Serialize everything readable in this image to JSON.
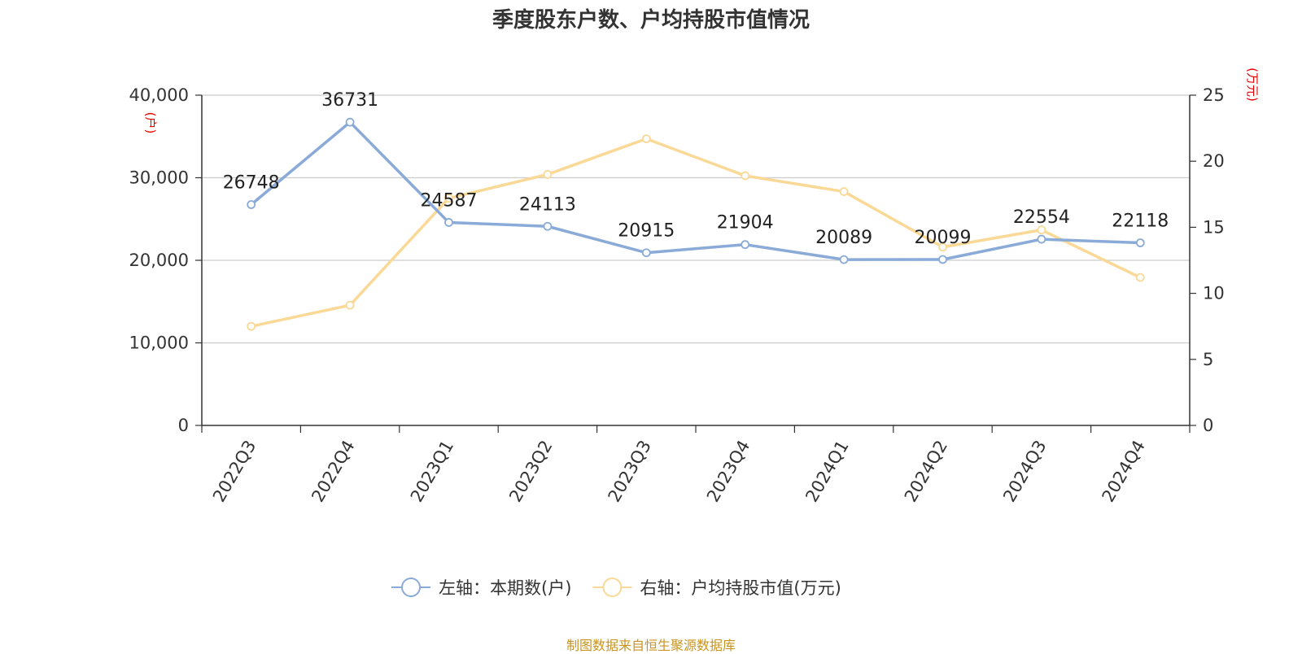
{
  "source": "制图数据来自恒生聚源数据库",
  "chart_data": {
    "type": "line",
    "title": "季度股东户数、户均持股市值情况",
    "categories": [
      "2022Q3",
      "2022Q4",
      "2023Q1",
      "2023Q2",
      "2023Q3",
      "2023Q4",
      "2024Q1",
      "2024Q2",
      "2024Q3",
      "2024Q4"
    ],
    "left_axis": {
      "unit": "(户)",
      "ylim": [
        0,
        40000
      ],
      "ticks": [
        "0",
        "10,000",
        "20,000",
        "30,000",
        "40,000"
      ]
    },
    "right_axis": {
      "unit": "(万元)",
      "ylim": [
        0,
        25
      ],
      "ticks": [
        "0",
        "5",
        "10",
        "15",
        "20",
        "25"
      ]
    },
    "grid": true,
    "legend_position": "bottom",
    "series": [
      {
        "name": "左轴：本期数(户)",
        "axis": "left",
        "color": "#8aaad8",
        "values": [
          26748,
          36731,
          24587,
          24113,
          20915,
          21904,
          20089,
          20099,
          22554,
          22118
        ],
        "labels": [
          "26748",
          "36731",
          "24587",
          "24113",
          "20915",
          "21904",
          "20089",
          "20099",
          "22554",
          "22118"
        ]
      },
      {
        "name": "右轴：户均持股市值(万元)",
        "axis": "right",
        "color": "#fad896",
        "values": [
          7.5,
          9.1,
          17.2,
          19.0,
          21.7,
          18.9,
          17.7,
          13.5,
          14.8,
          11.2
        ]
      }
    ]
  }
}
